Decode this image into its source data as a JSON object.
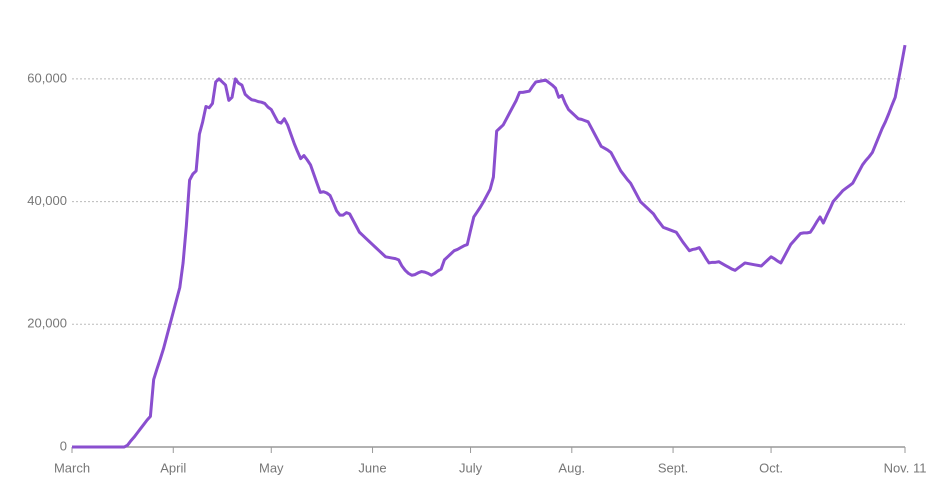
{
  "chart_data": {
    "type": "line",
    "categories": [
      "March",
      null,
      null,
      null,
      null,
      null,
      null,
      null,
      null,
      null,
      null,
      null,
      null,
      null,
      null,
      null,
      null,
      null,
      null,
      null,
      null,
      null,
      null,
      null,
      null,
      null,
      null,
      null,
      null,
      null,
      null,
      "April",
      null,
      null,
      null,
      null,
      null,
      null,
      null,
      null,
      null,
      null,
      null,
      null,
      null,
      null,
      null,
      null,
      null,
      null,
      null,
      null,
      null,
      null,
      null,
      null,
      null,
      null,
      null,
      null,
      null,
      "May",
      null,
      null,
      null,
      null,
      null,
      null,
      null,
      null,
      null,
      null,
      null,
      null,
      null,
      null,
      null,
      null,
      null,
      null,
      null,
      null,
      null,
      null,
      null,
      null,
      null,
      null,
      null,
      null,
      null,
      null,
      "June",
      null,
      null,
      null,
      null,
      null,
      null,
      null,
      null,
      null,
      null,
      null,
      null,
      null,
      null,
      null,
      null,
      null,
      null,
      null,
      null,
      null,
      null,
      null,
      null,
      null,
      null,
      null,
      null,
      null,
      "July",
      null,
      null,
      null,
      null,
      null,
      null,
      null,
      null,
      null,
      null,
      null,
      null,
      null,
      null,
      null,
      null,
      null,
      null,
      null,
      null,
      null,
      null,
      null,
      null,
      null,
      null,
      null,
      null,
      null,
      null,
      "Aug.",
      null,
      null,
      null,
      null,
      null,
      null,
      null,
      null,
      null,
      null,
      null,
      null,
      null,
      null,
      null,
      null,
      null,
      null,
      null,
      null,
      null,
      null,
      null,
      null,
      null,
      null,
      null,
      null,
      null,
      null,
      "Sept.",
      null,
      null,
      null,
      null,
      null,
      null,
      null,
      null,
      null,
      null,
      null,
      null,
      null,
      null,
      null,
      null,
      null,
      null,
      null,
      null,
      null,
      null,
      null,
      null,
      null,
      null,
      null,
      null,
      null,
      "Oct.",
      null,
      null,
      null,
      null,
      null,
      null,
      null,
      null,
      null,
      null,
      null,
      null,
      null,
      null,
      null,
      null,
      null,
      null,
      null,
      null,
      null,
      null,
      null,
      null,
      null,
      null,
      null,
      null,
      null,
      null,
      null,
      null,
      null,
      null,
      null,
      null,
      null,
      null,
      null,
      null,
      "Nov. 11"
    ],
    "series": [
      {
        "color": "#8a4fcf",
        "values": [
          0,
          0,
          0,
          0,
          0,
          0,
          0,
          0,
          0,
          0,
          0,
          0,
          0,
          0,
          0,
          0,
          0,
          300,
          1000,
          1600,
          2300,
          3000,
          3700,
          4400,
          5000,
          11000,
          12700,
          14300,
          16000,
          18000,
          20000,
          22000,
          24000,
          26000,
          30000,
          36000,
          43500,
          44500,
          45000,
          51000,
          53000,
          55500,
          55300,
          56000,
          59500,
          60000,
          59500,
          59000,
          56500,
          57000,
          60000,
          59300,
          59000,
          57500,
          57000,
          56600,
          56500,
          56300,
          56200,
          56000,
          55400,
          55000,
          54000,
          53000,
          52800,
          53500,
          52500,
          51000,
          49500,
          48200,
          47000,
          47500,
          46800,
          46000,
          44500,
          43000,
          41500,
          41600,
          41400,
          41000,
          39800,
          38500,
          37800,
          37800,
          38200,
          38000,
          37000,
          36000,
          35000,
          34500,
          34000,
          33500,
          33000,
          32500,
          32000,
          31500,
          31000,
          30900,
          30800,
          30700,
          30500,
          29500,
          28800,
          28300,
          28000,
          28100,
          28400,
          28600,
          28500,
          28300,
          28000,
          28300,
          28700,
          29000,
          30500,
          31000,
          31500,
          32000,
          32200,
          32500,
          32800,
          33000,
          35300,
          37500,
          38300,
          39100,
          40000,
          41000,
          42000,
          44000,
          51500,
          52000,
          52500,
          53500,
          54500,
          55500,
          56500,
          57800,
          57800,
          57900,
          58000,
          58800,
          59500,
          59600,
          59700,
          59800,
          59400,
          59000,
          58500,
          57000,
          57300,
          56000,
          55000,
          54500,
          54000,
          53500,
          53400,
          53200,
          53000,
          52000,
          51000,
          50000,
          49000,
          48700,
          48400,
          48000,
          47000,
          46000,
          45000,
          44300,
          43600,
          43000,
          42000,
          41000,
          40000,
          39500,
          39000,
          38500,
          38000,
          37200,
          36500,
          35800,
          35600,
          35400,
          35200,
          35000,
          34200,
          33400,
          32700,
          32000,
          32200,
          32300,
          32500,
          31700,
          30800,
          30000,
          30100,
          30100,
          30200,
          29900,
          29600,
          29300,
          29000,
          28800,
          29200,
          29600,
          30000,
          29900,
          29800,
          29700,
          29600,
          29500,
          30000,
          30500,
          31000,
          30700,
          30300,
          30000,
          31000,
          32000,
          33000,
          33600,
          34200,
          34800,
          34900,
          34900,
          35000,
          35800,
          36700,
          37500,
          36500,
          37700,
          38800,
          40000,
          40600,
          41200,
          41800,
          42200,
          42600,
          43000,
          44000,
          45000,
          46000,
          46700,
          47300,
          48000,
          49300,
          50600,
          51900,
          53000,
          54300,
          55700,
          57000,
          59800,
          62600,
          65500
        ]
      }
    ],
    "ylim": [
      0,
      69600
    ],
    "yticks": [
      0,
      {
        "value": 20000,
        "label": "20,000"
      },
      {
        "value": 40000,
        "label": "40,000"
      },
      {
        "value": 60000,
        "label": "60,000"
      }
    ],
    "grid": true
  }
}
